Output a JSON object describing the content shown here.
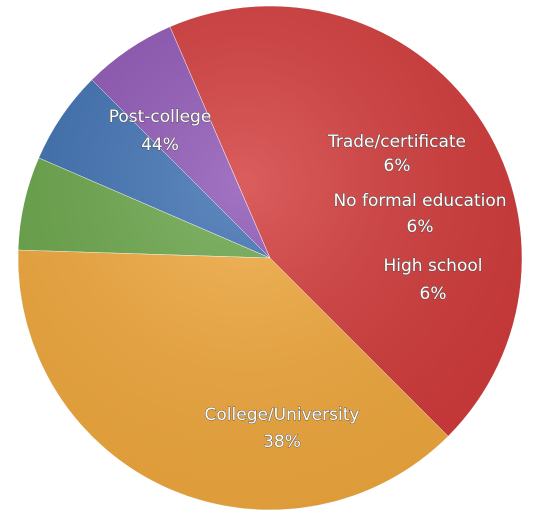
{
  "chart_data": {
    "type": "pie",
    "title": "",
    "slices": [
      {
        "label": "Post-college",
        "value": 44,
        "value_label": "44%",
        "color": "#d33a3a"
      },
      {
        "label": "Trade/certificate",
        "value": 6,
        "value_label": "6%",
        "color": "#8e55b5"
      },
      {
        "label": "No formal education",
        "value": 6,
        "value_label": "6%",
        "color": "#3e70b2"
      },
      {
        "label": "High school",
        "value": 6,
        "value_label": "6%",
        "color": "#6aa64a"
      },
      {
        "label": "College/University",
        "value": 38,
        "value_label": "38%",
        "color": "#f2a93d"
      }
    ]
  }
}
